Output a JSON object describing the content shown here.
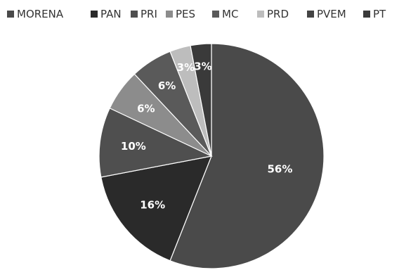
{
  "chart_data": {
    "type": "pie",
    "title": "",
    "legend_position": "top",
    "categories": [
      "MORENA",
      "PAN",
      "PRI",
      "PES",
      "MC",
      "PRD",
      "PVEM",
      "PT"
    ],
    "values": [
      56,
      16,
      10,
      6,
      6,
      3,
      0,
      3
    ],
    "labels": [
      "56%",
      "16%",
      "10%",
      "6%",
      "6%",
      "3%",
      "",
      "3%"
    ],
    "colors": [
      "#4a4a4a",
      "#2a2a2a",
      "#4f4f4f",
      "#8c8c8c",
      "#5a5a5a",
      "#bdbdbd",
      "#444444",
      "#3a3a3a"
    ]
  }
}
